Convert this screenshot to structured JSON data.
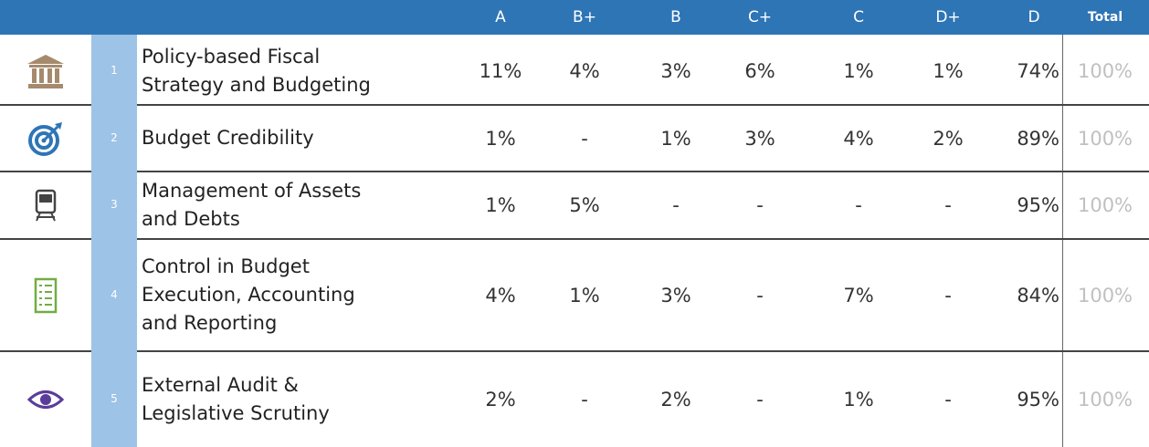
{
  "table": {
    "columns": [
      "A",
      "B+",
      "B",
      "C+",
      "C",
      "D+",
      "D",
      "Total"
    ],
    "rows": [
      {
        "number": "1",
        "label": "Policy-based Fiscal\nStrategy and Budgeting",
        "values": [
          "11%",
          "4%",
          "3%",
          "6%",
          "1%",
          "1%",
          "74%",
          "100%"
        ]
      },
      {
        "number": "2",
        "label": "Budget Credibility",
        "values": [
          "1%",
          "-",
          "1%",
          "3%",
          "4%",
          "2%",
          "89%",
          "100%"
        ]
      },
      {
        "number": "3",
        "label": "Management of Assets\nand Debts",
        "values": [
          "1%",
          "5%",
          "-",
          "-",
          "-",
          "-",
          "95%",
          "100%"
        ]
      },
      {
        "number": "4",
        "label": "Control in Budget\nExecution, Accounting\nand Reporting",
        "values": [
          "4%",
          "1%",
          "3%",
          "-",
          "7%",
          "-",
          "84%",
          "100%"
        ]
      },
      {
        "number": "5",
        "label": "External Audit &\nLegislative Scrutiny",
        "values": [
          "2%",
          "-",
          "2%",
          "-",
          "1%",
          "-",
          "95%",
          "100%"
        ]
      }
    ]
  }
}
